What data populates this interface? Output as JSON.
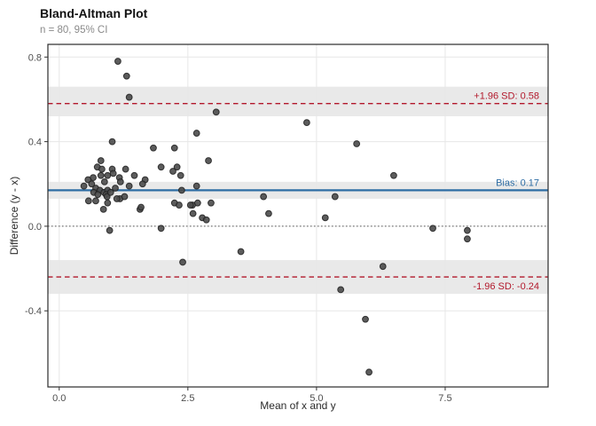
{
  "header": {
    "title": "Bland-Altman Plot",
    "subtitle": "n = 80, 95% CI"
  },
  "chart_data": {
    "type": "scatter",
    "title": "Bland-Altman Plot",
    "subtitle": "n = 80, 95% CI",
    "xlabel": "Mean of x and y",
    "ylabel": "Difference (y - x)",
    "xlim": [
      -0.22,
      9.5
    ],
    "ylim": [
      -0.76,
      0.86
    ],
    "x_ticks": [
      0.0,
      2.5,
      5.0,
      7.5
    ],
    "y_ticks": [
      -0.4,
      0.0,
      0.4,
      0.8
    ],
    "grid": true,
    "legend": "none",
    "zero_line": 0.0,
    "colors": {
      "point": "#4a4a4a",
      "point_stroke": "#1f1f1f",
      "bias": "#2e6da4",
      "loa": "#b2182b",
      "ci_band": "#e9e9e9",
      "grid": "#e7e7e7",
      "panel_border": "#2b2b2b",
      "tick_label": "#4d4d4d",
      "zero_line_color": "#555555"
    },
    "lines": [
      {
        "name": "upper-loa",
        "value": 0.58,
        "label": "+1.96 SD: 0.58",
        "style": "dashed",
        "color": "#b2182b",
        "ci": [
          0.52,
          0.66
        ],
        "label_side": "above"
      },
      {
        "name": "bias",
        "value": 0.17,
        "label": "Bias: 0.17",
        "style": "solid",
        "color": "#2e6da4",
        "ci": [
          0.13,
          0.21
        ],
        "label_side": "above"
      },
      {
        "name": "lower-loa",
        "value": -0.24,
        "label": "-1.96 SD: -0.24",
        "style": "dashed",
        "color": "#b2182b",
        "ci": [
          -0.32,
          -0.16
        ],
        "label_side": "below"
      }
    ],
    "points": [
      [
        1.14,
        0.78
      ],
      [
        1.31,
        0.71
      ],
      [
        1.36,
        0.61
      ],
      [
        3.05,
        0.54
      ],
      [
        4.81,
        0.49
      ],
      [
        2.67,
        0.44
      ],
      [
        1.03,
        0.4
      ],
      [
        5.78,
        0.39
      ],
      [
        1.83,
        0.37
      ],
      [
        2.24,
        0.37
      ],
      [
        2.9,
        0.31
      ],
      [
        0.81,
        0.31
      ],
      [
        0.74,
        0.28
      ],
      [
        0.83,
        0.27
      ],
      [
        1.03,
        0.27
      ],
      [
        1.29,
        0.27
      ],
      [
        1.98,
        0.28
      ],
      [
        2.29,
        0.28
      ],
      [
        2.21,
        0.26
      ],
      [
        6.5,
        0.24
      ],
      [
        2.36,
        0.24
      ],
      [
        0.81,
        0.24
      ],
      [
        1.46,
        0.24
      ],
      [
        0.94,
        0.24
      ],
      [
        0.66,
        0.23
      ],
      [
        1.17,
        0.23
      ],
      [
        1.05,
        0.25
      ],
      [
        0.56,
        0.22
      ],
      [
        1.67,
        0.22
      ],
      [
        1.19,
        0.21
      ],
      [
        0.63,
        0.2
      ],
      [
        1.62,
        0.2
      ],
      [
        2.67,
        0.19
      ],
      [
        0.48,
        0.19
      ],
      [
        0.88,
        0.21
      ],
      [
        0.71,
        0.18
      ],
      [
        0.79,
        0.17
      ],
      [
        0.87,
        0.16
      ],
      [
        0.94,
        0.17
      ],
      [
        1.09,
        0.18
      ],
      [
        2.38,
        0.17
      ],
      [
        0.91,
        0.15
      ],
      [
        3.97,
        0.14
      ],
      [
        5.36,
        0.14
      ],
      [
        0.67,
        0.16
      ],
      [
        0.75,
        0.15
      ],
      [
        1.18,
        0.13
      ],
      [
        1.27,
        0.14
      ],
      [
        0.93,
        0.14
      ],
      [
        1.0,
        0.16
      ],
      [
        0.57,
        0.12
      ],
      [
        0.71,
        0.12
      ],
      [
        0.94,
        0.11
      ],
      [
        1.12,
        0.13
      ],
      [
        2.24,
        0.11
      ],
      [
        2.33,
        0.1
      ],
      [
        2.59,
        0.1
      ],
      [
        2.95,
        0.11
      ],
      [
        2.69,
        0.11
      ],
      [
        2.55,
        0.1
      ],
      [
        0.86,
        0.08
      ],
      [
        1.57,
        0.08
      ],
      [
        1.59,
        0.09
      ],
      [
        2.6,
        0.06
      ],
      [
        4.07,
        0.06
      ],
      [
        2.78,
        0.04
      ],
      [
        2.86,
        0.03
      ],
      [
        5.17,
        0.04
      ],
      [
        0.98,
        -0.02
      ],
      [
        1.98,
        -0.01
      ],
      [
        7.26,
        -0.01
      ],
      [
        7.93,
        -0.02
      ],
      [
        7.93,
        -0.06
      ],
      [
        3.53,
        -0.12
      ],
      [
        2.4,
        -0.17
      ],
      [
        6.29,
        -0.19
      ],
      [
        5.47,
        -0.3
      ],
      [
        5.95,
        -0.44
      ],
      [
        6.02,
        -0.69
      ],
      [
        1.36,
        0.19
      ]
    ]
  }
}
